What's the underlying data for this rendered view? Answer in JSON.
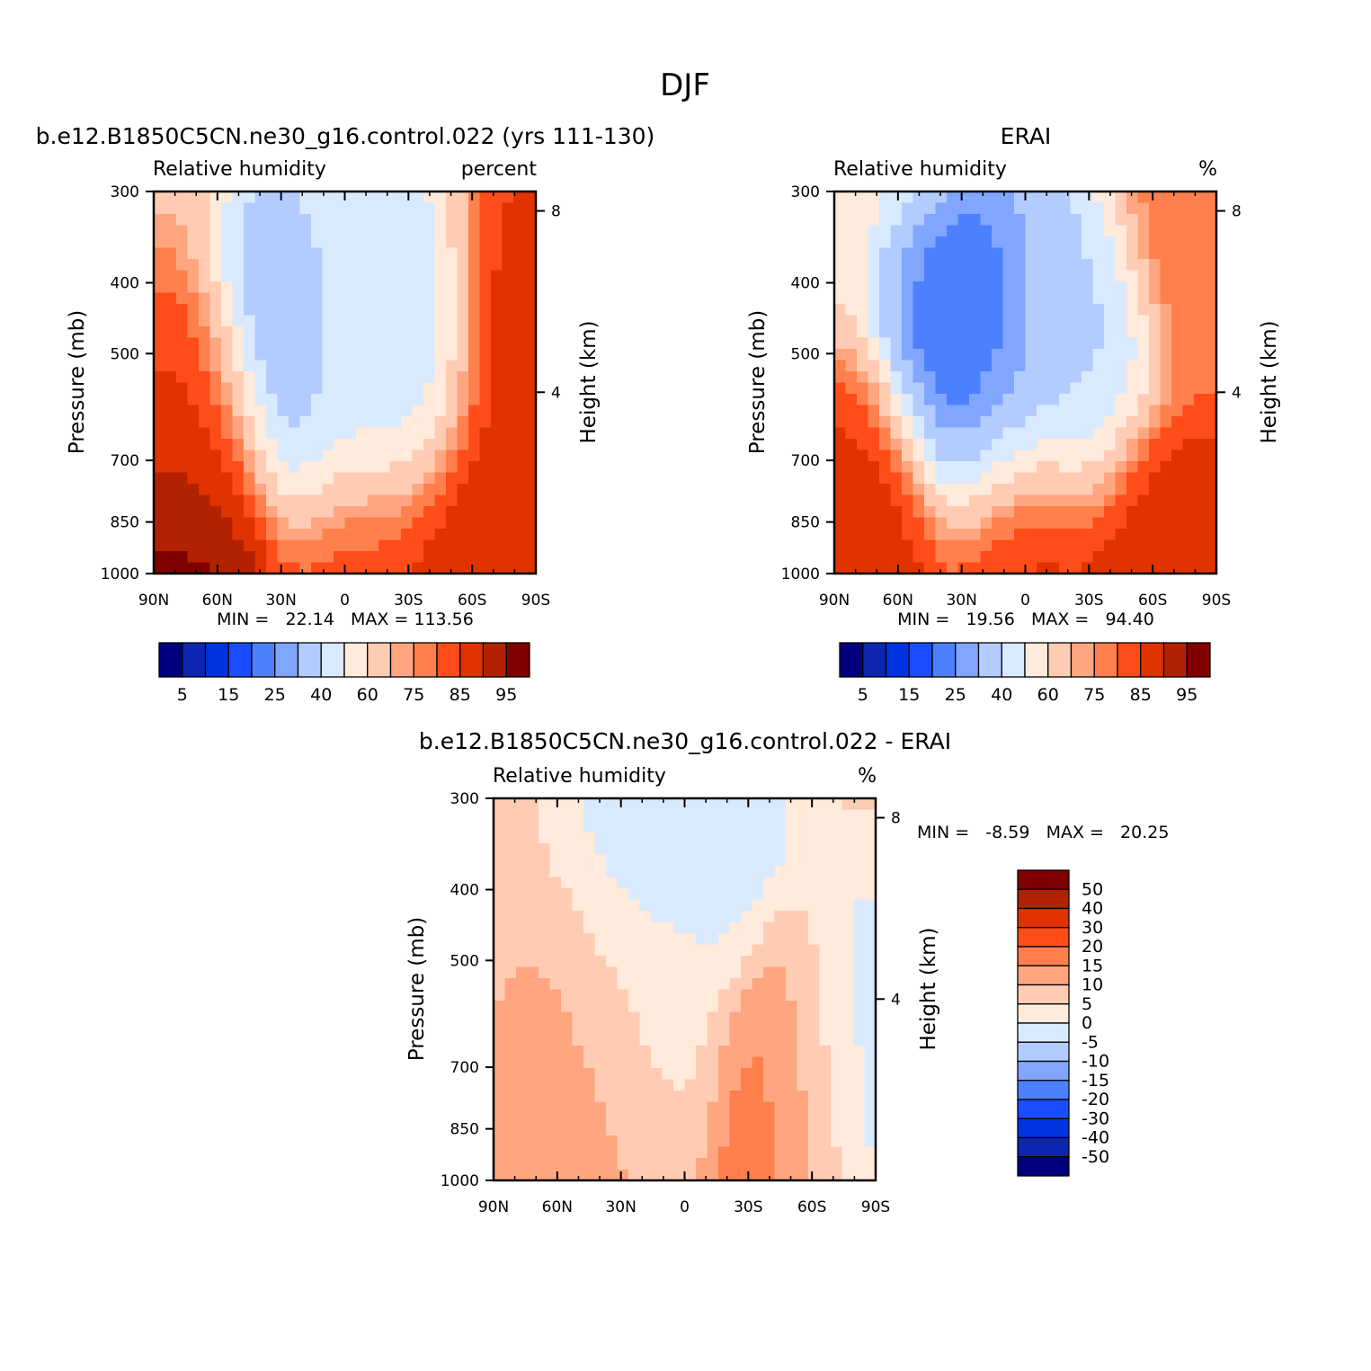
{
  "main_title": "DJF",
  "chart_data": [
    {
      "type": "heatmap",
      "title": "b.e12.B1850C5CN.ne30_g16.control.022 (yrs 111-130)",
      "left_label": "Relative humidity",
      "right_label": "percent",
      "ylabel": "Pressure (mb)",
      "y2label": "Height (km)",
      "xlim": [
        90,
        -90
      ],
      "x_ticks": [
        "90N",
        "60N",
        "30N",
        "0",
        "30S",
        "60S",
        "90S"
      ],
      "y_ticks": [
        "300",
        "400",
        "500",
        "700",
        "850",
        "1000"
      ],
      "y2_ticks": [
        "8",
        "4"
      ],
      "stats": "MIN =   22.14   MAX = 113.56",
      "min": 22.14,
      "max": 113.56,
      "colorbar_labels": [
        "5",
        "15",
        "25",
        "40",
        "60",
        "75",
        "85",
        "95"
      ],
      "levels": [
        5,
        10,
        15,
        20,
        25,
        30,
        40,
        50,
        60,
        70,
        75,
        80,
        85,
        90,
        95
      ],
      "features": [
        {
          "lat": 68,
          "p": 700,
          "value": 85
        },
        {
          "lat": 74,
          "p": 980,
          "value": 100
        },
        {
          "lat": 18,
          "p": 520,
          "value": 22
        },
        {
          "lat": -22,
          "p": 520,
          "value": 38
        },
        {
          "lat": 0,
          "p": 500,
          "value": 56
        },
        {
          "lat": -5,
          "p": 940,
          "value": 85
        },
        {
          "lat": -60,
          "p": 890,
          "value": 90
        },
        {
          "lat": -85,
          "p": 500,
          "value": 88
        }
      ]
    },
    {
      "type": "heatmap",
      "title": "ERAI",
      "left_label": "Relative humidity",
      "right_label": "%",
      "ylabel": "Pressure (mb)",
      "y2label": "Height (km)",
      "xlim": [
        90,
        -90
      ],
      "x_ticks": [
        "90N",
        "60N",
        "30N",
        "0",
        "30S",
        "60S",
        "90S"
      ],
      "y_ticks": [
        "300",
        "400",
        "500",
        "700",
        "850",
        "1000"
      ],
      "y2_ticks": [
        "8",
        "4"
      ],
      "stats": "MIN =   19.56   MAX =   94.40",
      "min": 19.56,
      "max": 94.4,
      "colorbar_labels": [
        "5",
        "15",
        "25",
        "40",
        "60",
        "75",
        "85",
        "95"
      ],
      "levels": [
        5,
        10,
        15,
        20,
        25,
        30,
        40,
        50,
        60,
        70,
        75,
        80,
        85,
        90,
        95
      ],
      "features": [
        {
          "lat": 78,
          "p": 960,
          "value": 88
        },
        {
          "lat": 18,
          "p": 520,
          "value": 20
        },
        {
          "lat": -22,
          "p": 520,
          "value": 38
        },
        {
          "lat": -3,
          "p": 940,
          "value": 88
        },
        {
          "lat": -62,
          "p": 920,
          "value": 90
        },
        {
          "lat": -85,
          "p": 350,
          "value": 80
        }
      ]
    },
    {
      "type": "heatmap",
      "title": "b.e12.B1850C5CN.ne30_g16.control.022 - ERAI",
      "left_label": "Relative humidity",
      "right_label": "%",
      "ylabel": "Pressure (mb)",
      "y2label": "Height (km)",
      "xlim": [
        90,
        -90
      ],
      "x_ticks": [
        "90N",
        "60N",
        "30N",
        "0",
        "30S",
        "60S",
        "90S"
      ],
      "y_ticks": [
        "300",
        "400",
        "500",
        "700",
        "850",
        "1000"
      ],
      "y2_ticks": [
        "8",
        "4"
      ],
      "stats": "MIN =   -8.59   MAX =   20.25",
      "min": -8.59,
      "max": 20.25,
      "colorbar_labels": [
        "50",
        "40",
        "30",
        "20",
        "15",
        "10",
        "5",
        "0",
        "-5",
        "-10",
        "-15",
        "-20",
        "-30",
        "-40",
        "-50"
      ],
      "levels": [
        -50,
        -40,
        -30,
        -20,
        -15,
        -10,
        -5,
        0,
        5,
        10,
        15,
        20,
        30,
        40,
        50
      ],
      "features": [
        {
          "lat": 45,
          "p": 780,
          "value": 12
        },
        {
          "lat": -50,
          "p": 800,
          "value": 20
        },
        {
          "lat": 0,
          "p": 350,
          "value": -3
        },
        {
          "lat": -75,
          "p": 750,
          "value": -5
        },
        {
          "lat": 15,
          "p": 600,
          "value": 3
        }
      ]
    }
  ],
  "colors": {
    "rh_palette": [
      "#00007f",
      "#0c26b2",
      "#0033e0",
      "#1a4dff",
      "#4d80ff",
      "#80a6ff",
      "#b3ccff",
      "#d9eaff",
      "#ffeadb",
      "#ffccb3",
      "#ffa680",
      "#ff804d",
      "#ff4d1a",
      "#e03300",
      "#b32200",
      "#800000"
    ],
    "diff_palette": [
      "#00007f",
      "#0c26b2",
      "#0033e0",
      "#1a4dff",
      "#4d80ff",
      "#80a6ff",
      "#b3ccff",
      "#d9eaff",
      "#ffeadb",
      "#ffccb3",
      "#ffa680",
      "#ff804d",
      "#ff4d1a",
      "#e03300",
      "#b32200",
      "#800000"
    ]
  }
}
